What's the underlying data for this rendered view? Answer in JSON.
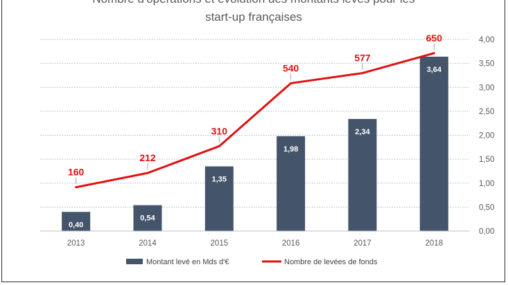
{
  "chart_data": {
    "type": "bar",
    "title_line1": "Nombre d'opérations et évolution des montants levés pour les",
    "title_line2": "start-up françaises",
    "categories": [
      "2013",
      "2014",
      "2015",
      "2016",
      "2017",
      "2018"
    ],
    "series": [
      {
        "name": "Montant levé en Mds d'€",
        "type": "bar",
        "axis": "right",
        "color": "#44546a",
        "values": [
          0.4,
          0.54,
          1.35,
          1.98,
          2.34,
          3.64
        ],
        "labels": [
          "0,40",
          "0,54",
          "1,35",
          "1,98",
          "2,34",
          "3,64"
        ]
      },
      {
        "name": "Nombre de levées de fonds",
        "type": "line",
        "axis": "right-scaled",
        "color": "#e01010",
        "values": [
          160,
          212,
          310,
          540,
          577,
          650
        ],
        "labels": [
          "160",
          "212",
          "310",
          "540",
          "577",
          "650"
        ]
      }
    ],
    "y_right_ticks": [
      "0,00",
      "0,50",
      "1,00",
      "1,50",
      "2,00",
      "2,50",
      "3,00",
      "3,50",
      "4,00"
    ],
    "ylim": [
      0,
      4
    ],
    "grid": "dotted",
    "legend": "bottom-center"
  }
}
